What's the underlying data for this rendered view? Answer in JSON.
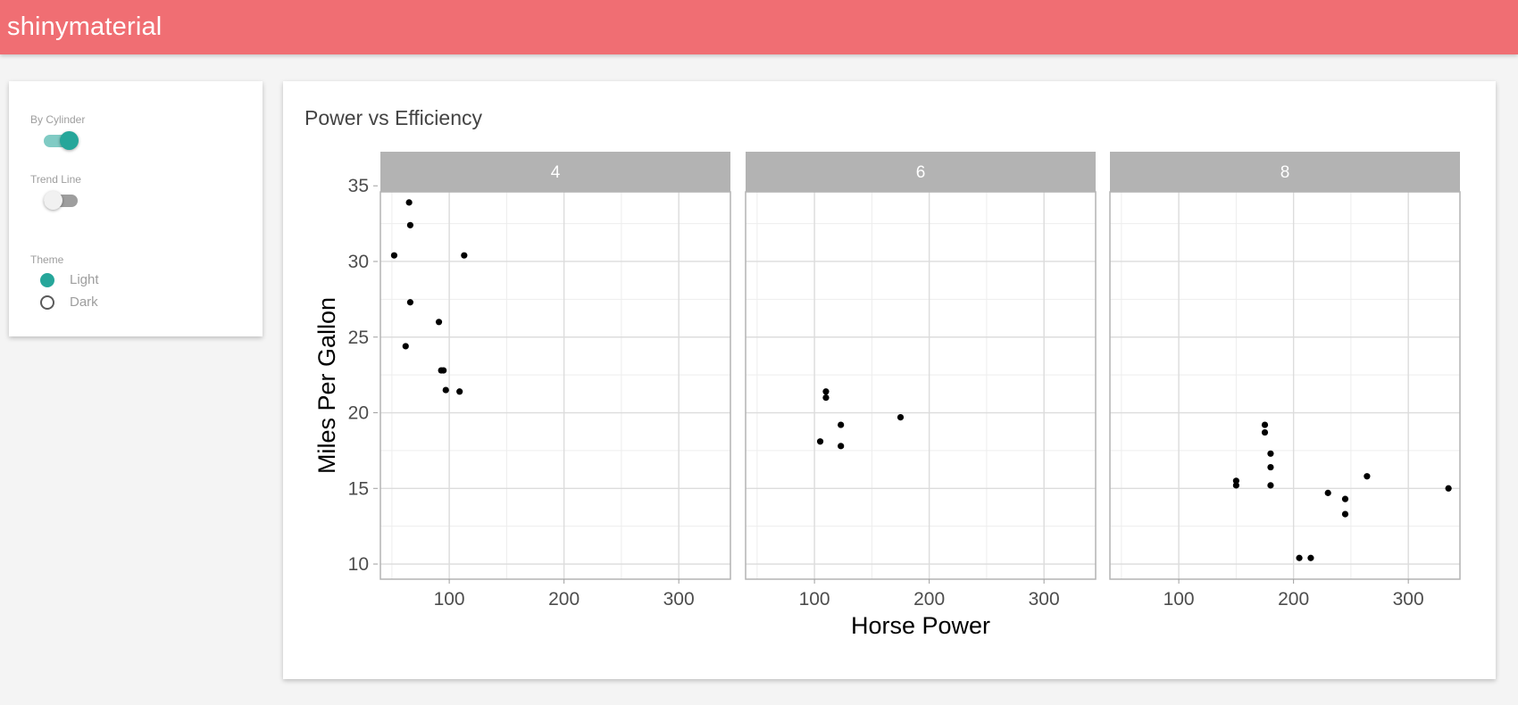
{
  "app": {
    "title": "shinymaterial"
  },
  "sidebar": {
    "by_cylinder": {
      "label": "By Cylinder",
      "checked": true
    },
    "trend_line": {
      "label": "Trend Line",
      "checked": false
    },
    "theme": {
      "label": "Theme",
      "options": [
        {
          "label": "Light",
          "checked": true
        },
        {
          "label": "Dark",
          "checked": false
        }
      ]
    }
  },
  "plot_card": {
    "title": "Power vs Efficiency"
  },
  "colors": {
    "navbar": "#f06e73",
    "accent": "#26a69a",
    "strip": "#b3b3b3"
  },
  "chart_data": {
    "type": "scatter",
    "title": "",
    "xlabel": "Horse Power",
    "ylabel": "Miles Per Gallon",
    "xlim": [
      40,
      345
    ],
    "ylim": [
      9,
      34.6
    ],
    "x_ticks": [
      100,
      200,
      300
    ],
    "y_ticks": [
      10,
      15,
      20,
      25,
      30,
      35
    ],
    "grid": true,
    "facets": [
      {
        "label": "4",
        "points": [
          {
            "x": 93,
            "y": 22.8
          },
          {
            "x": 62,
            "y": 24.4
          },
          {
            "x": 95,
            "y": 22.8
          },
          {
            "x": 66,
            "y": 32.4
          },
          {
            "x": 52,
            "y": 30.4
          },
          {
            "x": 65,
            "y": 33.9
          },
          {
            "x": 97,
            "y": 21.5
          },
          {
            "x": 66,
            "y": 27.3
          },
          {
            "x": 91,
            "y": 26.0
          },
          {
            "x": 113,
            "y": 30.4
          },
          {
            "x": 109,
            "y": 21.4
          }
        ]
      },
      {
        "label": "6",
        "points": [
          {
            "x": 110,
            "y": 21.0
          },
          {
            "x": 110,
            "y": 21.4
          },
          {
            "x": 105,
            "y": 18.1
          },
          {
            "x": 123,
            "y": 19.2
          },
          {
            "x": 123,
            "y": 17.8
          },
          {
            "x": 175,
            "y": 19.7
          }
        ]
      },
      {
        "label": "8",
        "points": [
          {
            "x": 175,
            "y": 18.7
          },
          {
            "x": 245,
            "y": 14.3
          },
          {
            "x": 180,
            "y": 16.4
          },
          {
            "x": 180,
            "y": 17.3
          },
          {
            "x": 180,
            "y": 15.2
          },
          {
            "x": 205,
            "y": 10.4
          },
          {
            "x": 215,
            "y": 10.4
          },
          {
            "x": 230,
            "y": 14.7
          },
          {
            "x": 150,
            "y": 15.5
          },
          {
            "x": 150,
            "y": 15.2
          },
          {
            "x": 245,
            "y": 13.3
          },
          {
            "x": 175,
            "y": 19.2
          },
          {
            "x": 264,
            "y": 15.8
          },
          {
            "x": 335,
            "y": 15.0
          }
        ]
      }
    ]
  }
}
